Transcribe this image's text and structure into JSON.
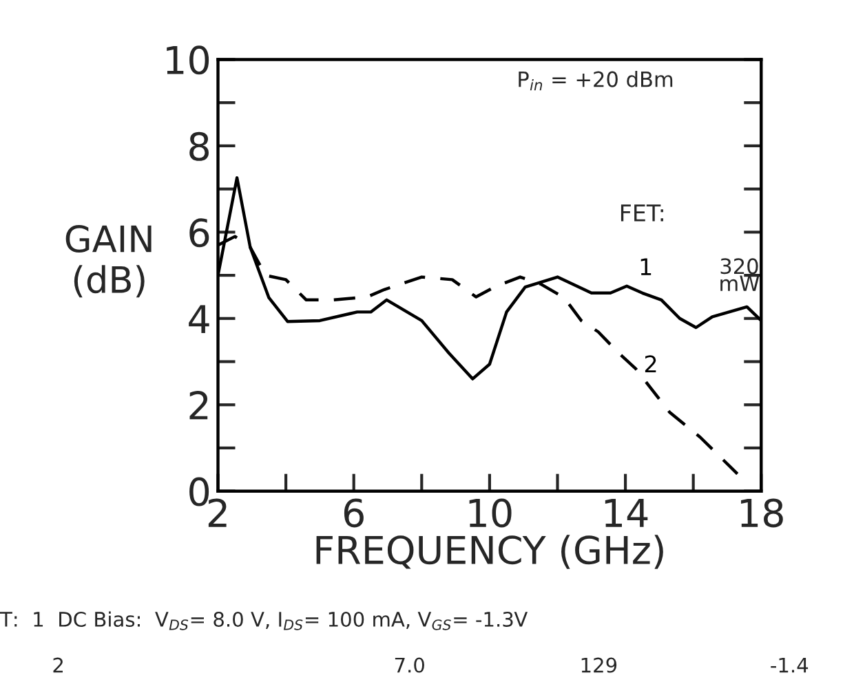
{
  "chart_data": {
    "type": "line",
    "xlabel": "FREQUENCY (GHz)",
    "ylabel": "GAIN\n(dB)",
    "legend_title": "FET:",
    "xlim": [
      2,
      18
    ],
    "ylim": [
      0,
      10
    ],
    "xticks": [
      2,
      {
        "value": 4,
        "label": null
      },
      6,
      {
        "value": 8,
        "label": null
      },
      10,
      {
        "value": 12,
        "label": null
      },
      14,
      {
        "value": 16,
        "label": null
      },
      18
    ],
    "yticks": [
      0,
      {
        "value": 1,
        "label": null
      },
      2,
      {
        "value": 3,
        "label": null
      },
      4,
      {
        "value": 5,
        "label": null
      },
      6,
      {
        "value": 7,
        "label": null
      },
      8,
      {
        "value": 9,
        "label": null
      },
      10
    ],
    "legend": false,
    "grid": false,
    "marker": "none",
    "series": [
      {
        "name": "1",
        "color": "#000000",
        "line_style": "solid",
        "x": [
          2,
          2.56,
          2.95,
          3.5,
          4.05,
          5.0,
          6.1,
          6.5,
          6.97,
          8.0,
          8.8,
          9.5,
          10.0,
          10.5,
          11.05,
          12.0,
          13.0,
          13.56,
          14.04,
          14.5,
          15.06,
          15.6,
          16.08,
          16.56,
          17.58,
          18
        ],
        "values": [
          5.0,
          7.26,
          5.65,
          4.48,
          3.93,
          3.95,
          4.15,
          4.15,
          4.43,
          3.95,
          3.2,
          2.6,
          2.94,
          4.15,
          4.73,
          4.96,
          4.59,
          4.59,
          4.75,
          4.59,
          4.43,
          4.0,
          3.79,
          4.04,
          4.27,
          3.95
        ]
      },
      {
        "name": "2",
        "color": "#000000",
        "line_style": "dashed",
        "x": [
          2,
          2.5,
          2.95,
          3.4,
          4.0,
          4.6,
          5.4,
          6.4,
          6.9,
          8.0,
          8.9,
          9.6,
          10.2,
          10.9,
          11.5,
          12.2,
          12.7,
          13.2,
          13.8,
          14.3,
          15.3,
          16.2,
          17.3
        ],
        "values": [
          5.7,
          5.9,
          5.65,
          5.0,
          4.9,
          4.43,
          4.43,
          4.5,
          4.67,
          4.96,
          4.9,
          4.5,
          4.75,
          4.96,
          4.8,
          4.48,
          3.95,
          3.69,
          3.2,
          2.84,
          1.83,
          1.25,
          0.4
        ]
      }
    ],
    "annotations": [
      "P$_{in}$ = +20 dBm",
      {
        "text": "320\nmW",
        "x": 17.58,
        "y": 4.27
      },
      "T:  1  DC Bias:  V$_{DS}$= 8.0 V, I$_{DS}$= 100 mA, V$_{GS}$= -1.3V",
      "2",
      "7.0",
      "129",
      "-1.4"
    ]
  }
}
